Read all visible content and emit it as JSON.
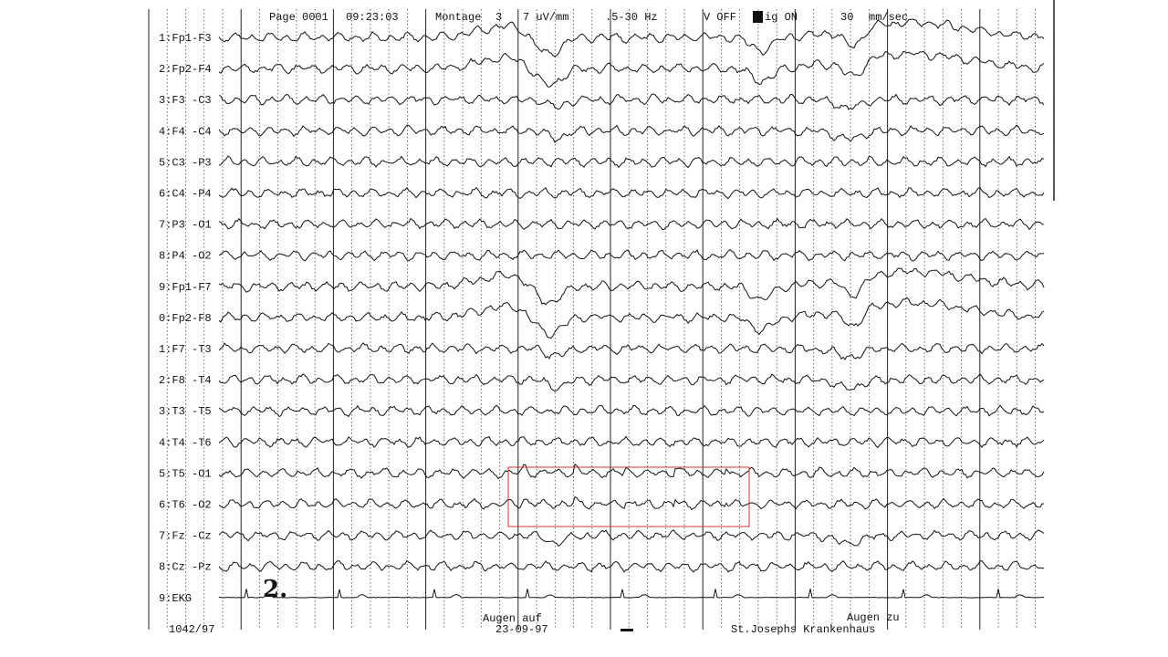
{
  "header": {
    "page": "Page 0001",
    "time": "09:23:03",
    "montage_label": "Montage",
    "montage": "3",
    "sensitivity": "7 uV/mm",
    "filter": ".5-30 Hz",
    "v": "V OFF",
    "sig": "ig ON",
    "speed": "30",
    "speed_unit": "mm/sec"
  },
  "channels": [
    "1:Fp1-F3",
    "2:Fp2-F4",
    "3:F3 -C3",
    "4:F4 -C4",
    "5:C3 -P3",
    "6:C4 -P4",
    "7:P3 -O1",
    "8:P4 -O2",
    "9:Fp1-F7",
    "0:Fp2-F8",
    "1:F7 -T3",
    "2:F8 -T4",
    "3:T3 -T5",
    "4:T4 -T6",
    "5:T5 -O1",
    "6:T6 -O2",
    "7:Fz -Cz",
    "8:Cz -Pz",
    "9:EKG"
  ],
  "annotation": "2.",
  "footer": {
    "record": "1042/97",
    "event_open": "Augen auf",
    "date": "23-09-97",
    "hospital": "St.Josephs Krankenhaus",
    "event_closed": "Augen zu"
  }
}
